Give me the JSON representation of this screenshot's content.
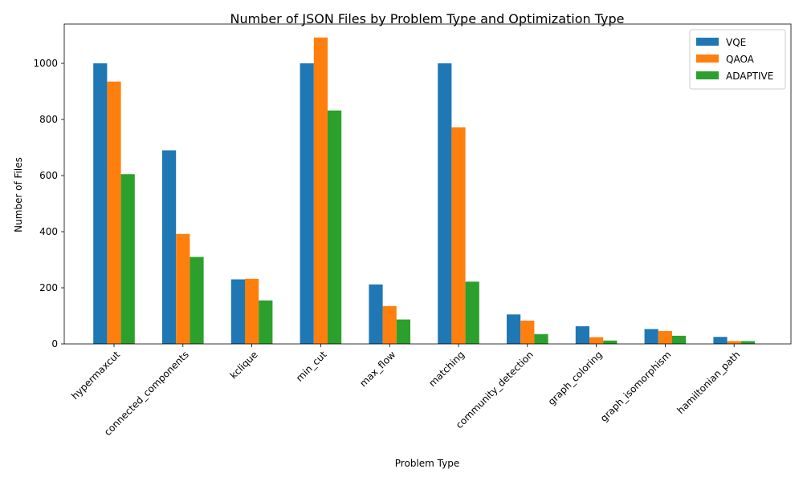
{
  "chart_data": {
    "type": "bar",
    "title": "Number of JSON Files by Problem Type and Optimization Type",
    "xlabel": "Problem Type",
    "ylabel": "Number of Files",
    "ylim": [
      0,
      1140
    ],
    "yticks": [
      0,
      200,
      400,
      600,
      800,
      1000
    ],
    "grid": false,
    "legend_position": "top-right",
    "categories": [
      "hypermaxcut",
      "connected_components",
      "kclique",
      "min_cut",
      "max_flow",
      "matching",
      "community_detection",
      "graph_coloring",
      "graph_isomorphism",
      "hamiltonian_path"
    ],
    "series": [
      {
        "name": "VQE",
        "color": "#1f77b4",
        "values": [
          1000,
          690,
          230,
          1000,
          212,
          1000,
          105,
          63,
          53,
          25
        ]
      },
      {
        "name": "QAOA",
        "color": "#ff7f0e",
        "values": [
          935,
          392,
          232,
          1092,
          135,
          772,
          83,
          24,
          46,
          10
        ]
      },
      {
        "name": "ADAPTIVE",
        "color": "#2ca02c",
        "values": [
          605,
          310,
          155,
          832,
          87,
          222,
          35,
          12,
          29,
          10
        ]
      }
    ]
  }
}
